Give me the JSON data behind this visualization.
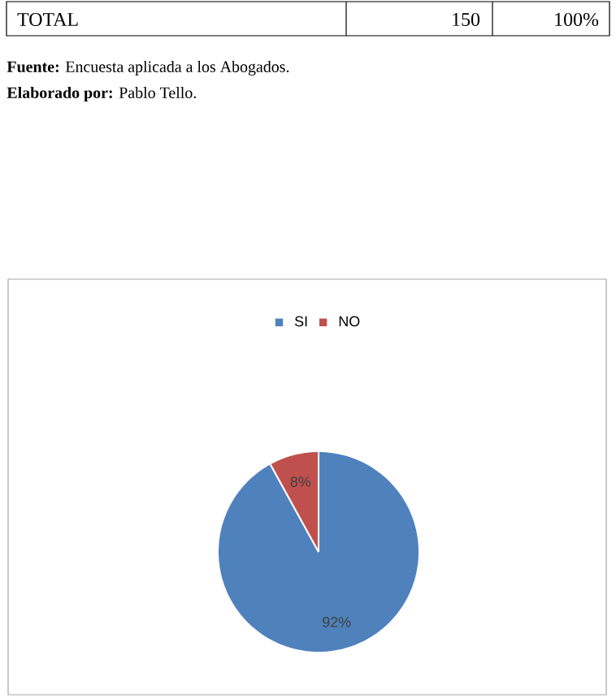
{
  "chart_data": {
    "type": "pie",
    "categories": [
      "SI",
      "NO"
    ],
    "values": [
      92,
      8
    ],
    "colors": [
      "#4f81bd",
      "#c0504d"
    ],
    "value_labels": [
      "92%",
      "8%"
    ],
    "legend": "top",
    "annotations": [
      "TOTAL",
      "150",
      "100%",
      "**Fuente:** Encuesta aplicada a los Abogados.",
      "**Elaborado por:** Pablo Tello."
    ]
  }
}
